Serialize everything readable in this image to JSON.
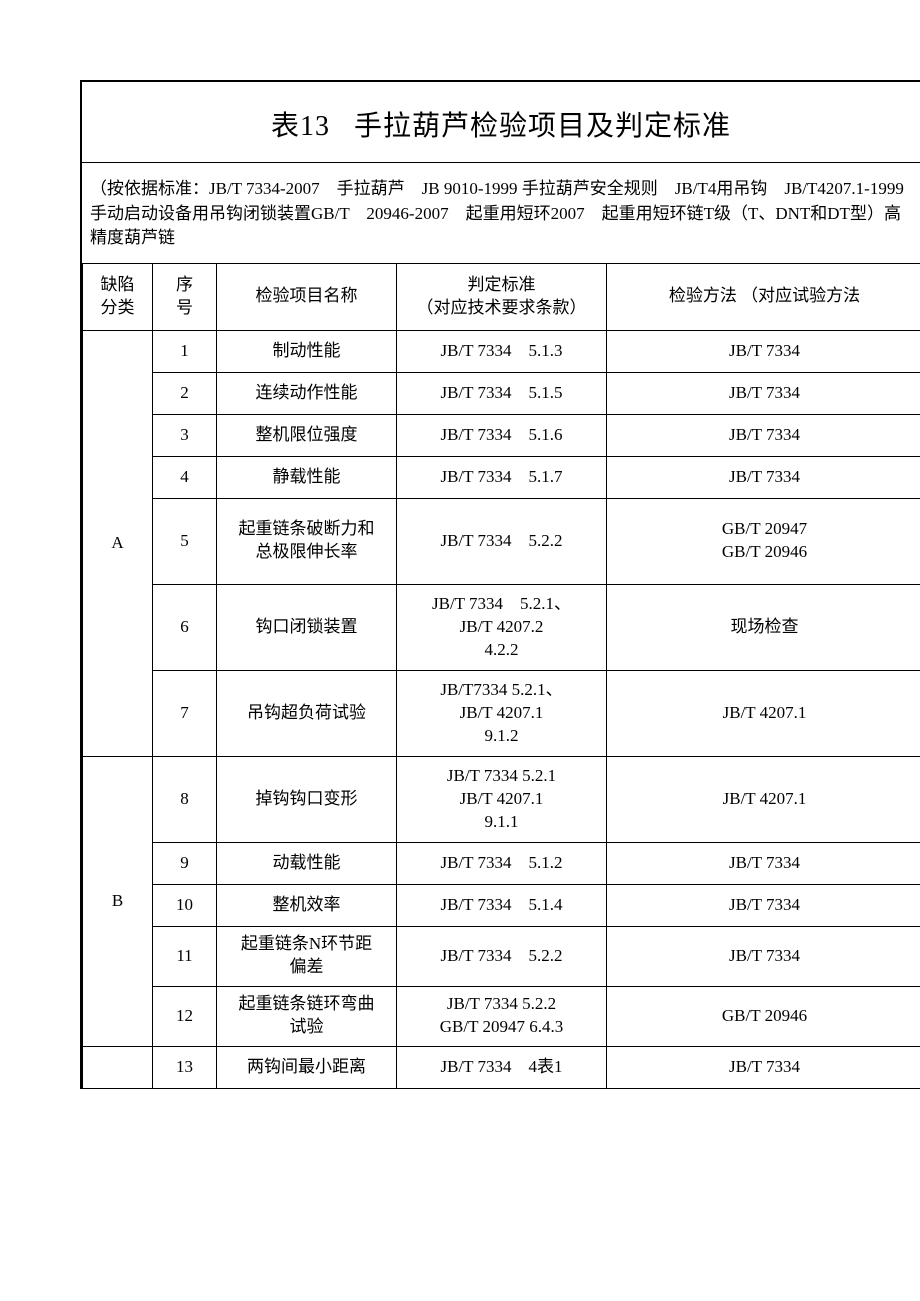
{
  "title": {
    "tableNumber": "表13",
    "text": "手拉葫芦检验项目及判定标准"
  },
  "notes": "（按依据标准：JB/T 7334-2007　手拉葫芦　JB 9010-1999 手拉葫芦安全规则　JB/T4用吊钩　JB/T4207.1-1999手动启动设备用吊钩闭锁装置GB/T　20946-2007　起重用短环2007　起重用短环链T级（T、DNT和DT型）高精度葫芦链",
  "headers": {
    "defect": "缺陷\n分类",
    "seq": "序\n号",
    "item": "检验项目名称",
    "standard": "判定标准\n（对应技术要求条款）",
    "method": "检验方法\n（对应试验方法"
  },
  "groups": [
    {
      "category": "A",
      "rows": [
        {
          "seq": "1",
          "item": "制动性能",
          "standard": "JB/T 7334　5.1.3",
          "method": "JB/T 7334",
          "h": "norm"
        },
        {
          "seq": "2",
          "item": "连续动作性能",
          "standard": "JB/T 7334　5.1.5",
          "method": "JB/T 7334",
          "h": "norm"
        },
        {
          "seq": "3",
          "item": "整机限位强度",
          "standard": "JB/T 7334　5.1.6",
          "method": "JB/T 7334",
          "h": "norm"
        },
        {
          "seq": "4",
          "item": "静载性能",
          "standard": "JB/T 7334　5.1.7",
          "method": "JB/T 7334",
          "h": "norm"
        },
        {
          "seq": "5",
          "item": "起重链条破断力和\n总极限伸长率",
          "standard": "JB/T 7334　5.2.2",
          "method": "GB/T 20947\nGB/T 20946",
          "h": "tall"
        },
        {
          "seq": "6",
          "item": "钩口闭锁装置",
          "standard": "JB/T 7334　5.2.1、\nJB/T 4207.2\n4.2.2",
          "method": "现场检查",
          "h": "tall"
        },
        {
          "seq": "7",
          "item": "吊钩超负荷试验",
          "standard": "JB/T7334 5.2.1、\nJB/T 4207.1\n9.1.2",
          "method": "JB/T 4207.1",
          "h": "tall"
        }
      ]
    },
    {
      "category": "B",
      "rows": [
        {
          "seq": "8",
          "item": "掉钩钩口变形",
          "standard": "JB/T 7334 5.2.1\nJB/T 4207.1\n9.1.1",
          "method": "JB/T 4207.1",
          "h": "tall"
        },
        {
          "seq": "9",
          "item": "动载性能",
          "standard": "JB/T 7334　5.1.2",
          "method": "JB/T 7334",
          "h": "norm"
        },
        {
          "seq": "10",
          "item": "整机效率",
          "standard": "JB/T 7334　5.1.4",
          "method": "JB/T 7334",
          "h": "norm"
        },
        {
          "seq": "11",
          "item": "起重链条N环节距\n偏差",
          "standard": "JB/T 7334　5.2.2",
          "method": "JB/T 7334",
          "h": "med"
        },
        {
          "seq": "12",
          "item": "起重链条链环弯曲\n试验",
          "standard": "JB/T 7334 5.2.2\nGB/T 20947 6.4.3",
          "method": "GB/T 20946",
          "h": "med"
        }
      ]
    },
    {
      "category": "",
      "rows": [
        {
          "seq": "13",
          "item": "两钩间最小距离",
          "standard": "JB/T 7334　4表1",
          "method": "JB/T 7334",
          "h": "norm"
        }
      ]
    }
  ],
  "style": {
    "background": "#ffffff",
    "borderColor": "#000000",
    "fontSize": 17,
    "titleFontSize": 28
  }
}
